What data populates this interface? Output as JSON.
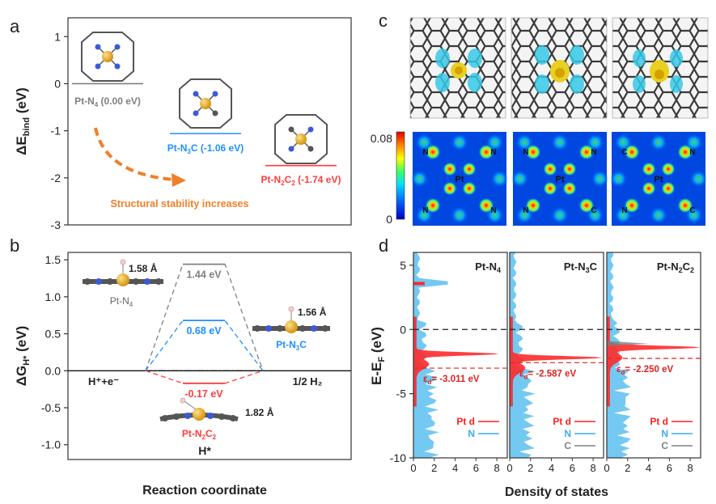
{
  "panel_labels": {
    "a": "a",
    "b": "b",
    "c": "c",
    "d": "d"
  },
  "panel_a": {
    "ylabel": "ΔE",
    "ylabel_sub": "bind",
    "ylabel_unit": " (eV)",
    "ylim": [
      -3,
      1.4
    ],
    "ticks": [
      "1",
      "0",
      "-1",
      "-2",
      "-3"
    ],
    "levels": [
      {
        "name": "Pt-N",
        "sub": "4",
        "suffix": " (0.00 eV)",
        "value": 0.0,
        "color": "#808080"
      },
      {
        "name": "Pt-N",
        "sub": "3",
        "suffix": "C (-1.06 eV)",
        "value": -1.06,
        "color": "#1e90ff"
      },
      {
        "name": "Pt-N",
        "sub": "2",
        "mid": "C",
        "sub2": "2",
        "suffix": " (-1.74 eV)",
        "value": -1.74,
        "color": "#ff3b3b"
      }
    ],
    "annotation": "Structural stability increases",
    "annotation_color": "#f07f2a"
  },
  "panel_b": {
    "ylabel": "ΔG",
    "ylabel_sub": "H*",
    "ylabel_unit": " (eV)",
    "xlabel": "Reaction coordinate",
    "ylim": [
      -1.2,
      1.6
    ],
    "ticks": [
      "1.5",
      "1.0",
      "0.5",
      "0.0",
      "-0.5",
      "-1.0"
    ],
    "states": {
      "start": "H⁺+e⁻",
      "middle": "H*",
      "end": "1/2 H₂"
    },
    "paths": [
      {
        "name": "Pt-N4",
        "value": 1.44,
        "label": "1.44 eV",
        "color": "#808080"
      },
      {
        "name": "Pt-N3C",
        "value": 0.68,
        "label": "0.68 eV",
        "color": "#1e90ff"
      },
      {
        "name": "Pt-N2C2",
        "value": -0.17,
        "label": "-0.17 eV",
        "color": "#ff3b3b"
      }
    ],
    "structures": [
      {
        "name": "Pt-N",
        "sub": "4",
        "bond": "1.58 Å"
      },
      {
        "name": "Pt-N",
        "sub": "3",
        "tail": "C",
        "bond": "1.56 Å"
      },
      {
        "name": "Pt-N",
        "sub": "2",
        "tail": "C",
        "sub2": "2",
        "bond": "1.82 Å"
      }
    ]
  },
  "panel_c": {
    "colorbar_max": "0.08",
    "colorbar_min": "0",
    "maps": [
      {
        "center": "Pt",
        "corners": [
          "N",
          "N",
          "N",
          "N"
        ]
      },
      {
        "center": "Pt",
        "corners": [
          "N",
          "N",
          "N",
          "C"
        ]
      },
      {
        "center": "Pt",
        "corners": [
          "C",
          "N",
          "N",
          "C"
        ]
      }
    ]
  },
  "panel_d": {
    "ylabel": "E-E",
    "ylabel_sub": "F",
    "ylabel_unit": " (eV)",
    "xlabel": "Density of states",
    "ylim": [
      -10,
      6
    ],
    "yticks": [
      "5",
      "0",
      "-5",
      "-10"
    ],
    "xticks": [
      "0",
      "2",
      "4",
      "6",
      "8"
    ],
    "subpanels": [
      {
        "title": "Pt-N",
        "sub": "4",
        "tail": "",
        "sub2": "",
        "d_band_center": "= -3.011 eV",
        "ed_value": -3.011
      },
      {
        "title": "Pt-N",
        "sub": "3",
        "tail": "C",
        "sub2": "",
        "d_band_center": "= -2.587 eV",
        "ed_value": -2.587
      },
      {
        "title": "Pt-N",
        "sub": "2",
        "tail": "C",
        "sub2": "2",
        "d_band_center": "= -2.250 eV",
        "ed_value": -2.25
      }
    ],
    "eps_symbol": "ε",
    "eps_sub": "d",
    "legend": [
      {
        "label": "Pt  d",
        "color": "#ff2020"
      },
      {
        "label": "N",
        "color": "#3aaee8"
      },
      {
        "label": "C",
        "color": "#808080"
      }
    ]
  }
}
